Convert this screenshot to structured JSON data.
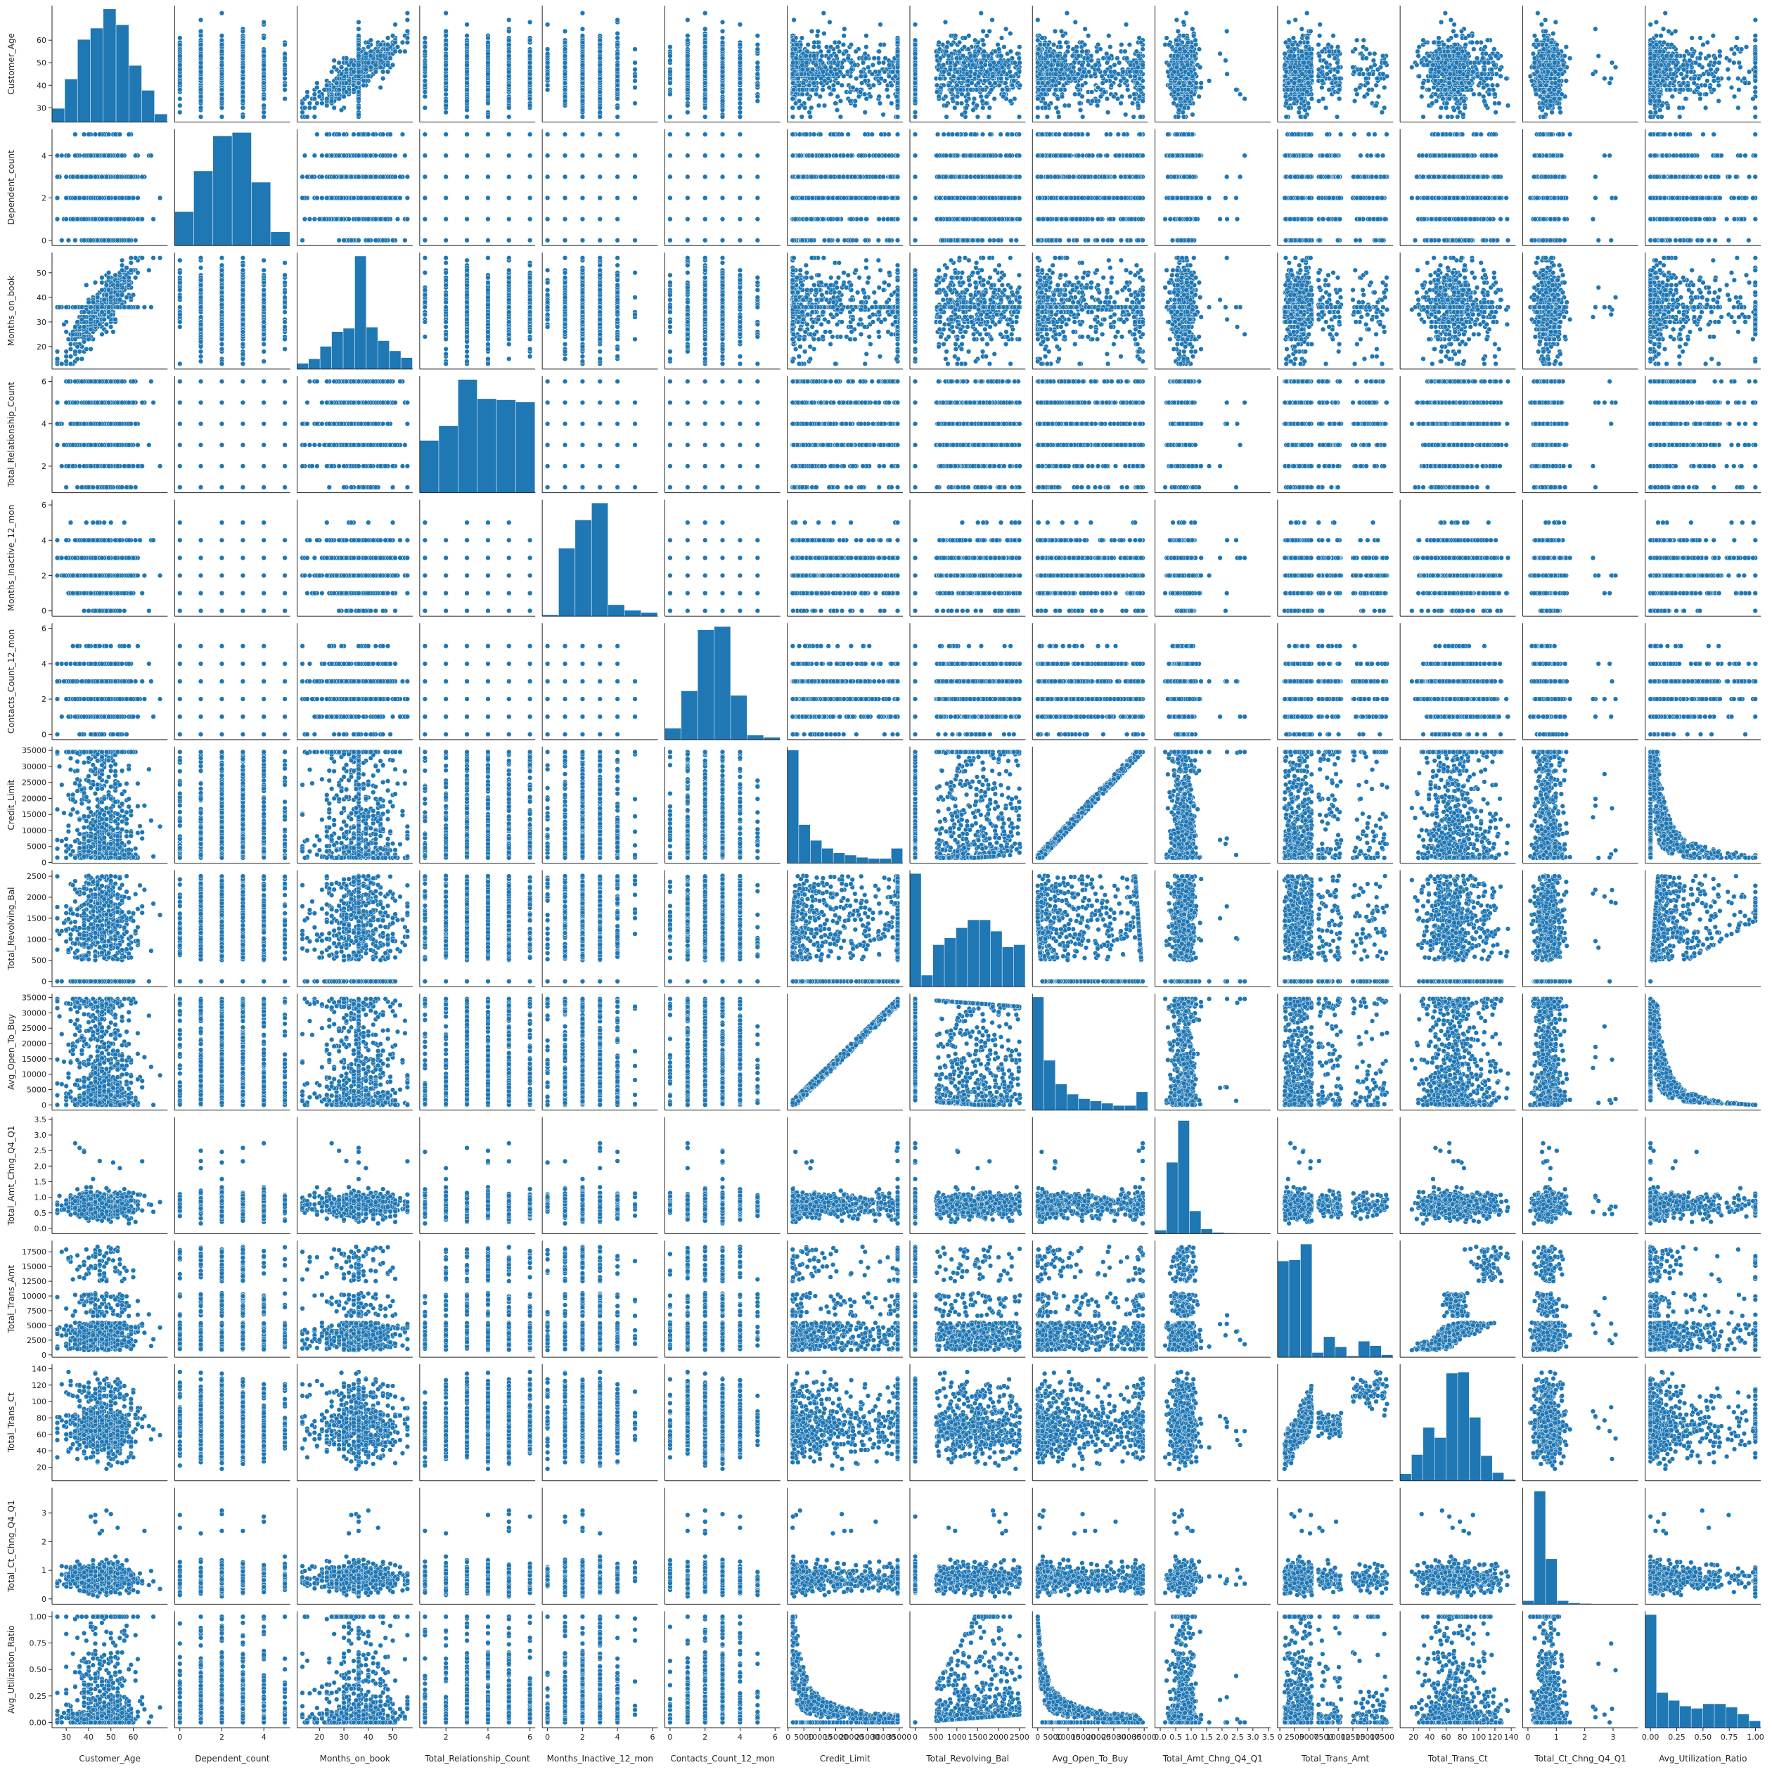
{
  "chart_data": {
    "type": "scatter",
    "layout": "pairplot",
    "point_color": "#1f77b4",
    "variables": [
      {
        "name": "Customer_Age",
        "range": [
          26,
          73
        ],
        "ticks": [
          {
            "v": 30,
            "label": "30"
          },
          {
            "v": 40,
            "label": "40"
          },
          {
            "v": 50,
            "label": "50"
          },
          {
            "v": 60,
            "label": "60"
          }
        ],
        "kind": "cont",
        "hist": [
          0.12,
          0.38,
          0.73,
          0.83,
          1.0,
          0.86,
          0.5,
          0.28,
          0.07
        ]
      },
      {
        "name": "Dependent_count",
        "range": [
          0,
          5
        ],
        "ticks": [
          {
            "v": 0,
            "label": "0"
          },
          {
            "v": 2,
            "label": "2"
          },
          {
            "v": 4,
            "label": "4"
          }
        ],
        "kind": "disc",
        "hist": [
          0.3,
          0.66,
          0.97,
          1.0,
          0.56,
          0.12
        ]
      },
      {
        "name": "Months_on_book",
        "range": [
          13,
          56
        ],
        "ticks": [
          {
            "v": 20,
            "label": "20"
          },
          {
            "v": 30,
            "label": "30"
          },
          {
            "v": 40,
            "label": "40"
          },
          {
            "v": 50,
            "label": "50"
          }
        ],
        "kind": "cont",
        "hist": [
          0.05,
          0.09,
          0.2,
          0.33,
          0.36,
          1.0,
          0.37,
          0.25,
          0.16,
          0.1
        ]
      },
      {
        "name": "Total_Relationship_Count",
        "range": [
          1,
          6
        ],
        "ticks": [
          {
            "v": 2,
            "label": "2"
          },
          {
            "v": 4,
            "label": "4"
          },
          {
            "v": 6,
            "label": "6"
          }
        ],
        "kind": "disc",
        "hist": [
          0.46,
          0.59,
          1.0,
          0.83,
          0.82,
          0.8
        ]
      },
      {
        "name": "Months_Inactive_12_mon",
        "range": [
          0,
          6
        ],
        "ticks": [
          {
            "v": 0,
            "label": "0"
          },
          {
            "v": 2,
            "label": "2"
          },
          {
            "v": 4,
            "label": "4"
          },
          {
            "v": 6,
            "label": "6"
          }
        ],
        "kind": "disc",
        "hist": [
          0.01,
          0.6,
          0.85,
          1.0,
          0.1,
          0.05,
          0.03
        ]
      },
      {
        "name": "Contacts_Count_12_mon",
        "range": [
          0,
          6
        ],
        "ticks": [
          {
            "v": 0,
            "label": "0"
          },
          {
            "v": 2,
            "label": "2"
          },
          {
            "v": 4,
            "label": "4"
          },
          {
            "v": 6,
            "label": "6"
          }
        ],
        "kind": "disc",
        "hist": [
          0.1,
          0.43,
          0.97,
          1.0,
          0.39,
          0.04,
          0.02
        ]
      },
      {
        "name": "Credit_Limit",
        "range": [
          1438,
          34516
        ],
        "ticks": [
          {
            "v": 0,
            "label": "0"
          },
          {
            "v": 5000,
            "label": "5000"
          },
          {
            "v": 10000,
            "label": "10000"
          },
          {
            "v": 15000,
            "label": "15000"
          },
          {
            "v": 20000,
            "label": "20000"
          },
          {
            "v": 25000,
            "label": "25000"
          },
          {
            "v": 30000,
            "label": "30000"
          },
          {
            "v": 35000,
            "label": "35000"
          }
        ],
        "kind": "cont",
        "hist": [
          1.0,
          0.34,
          0.2,
          0.13,
          0.09,
          0.07,
          0.05,
          0.04,
          0.04,
          0.13
        ]
      },
      {
        "name": "Total_Revolving_Bal",
        "range": [
          0,
          2517
        ],
        "ticks": [
          {
            "v": 0,
            "label": "0"
          },
          {
            "v": 500,
            "label": "500"
          },
          {
            "v": 1000,
            "label": "1000"
          },
          {
            "v": 1500,
            "label": "1500"
          },
          {
            "v": 2000,
            "label": "2000"
          },
          {
            "v": 2500,
            "label": "2500"
          }
        ],
        "kind": "cont",
        "hist": [
          1.0,
          0.1,
          0.37,
          0.43,
          0.52,
          0.59,
          0.59,
          0.49,
          0.35,
          0.37
        ]
      },
      {
        "name": "Avg_Open_To_Buy",
        "range": [
          3,
          34516
        ],
        "ticks": [
          {
            "v": 0,
            "label": "0"
          },
          {
            "v": 5000,
            "label": "5000"
          },
          {
            "v": 10000,
            "label": "10000"
          },
          {
            "v": 15000,
            "label": "15000"
          },
          {
            "v": 20000,
            "label": "20000"
          },
          {
            "v": 25000,
            "label": "25000"
          },
          {
            "v": 30000,
            "label": "30000"
          },
          {
            "v": 35000,
            "label": "35000"
          }
        ],
        "kind": "cont",
        "hist": [
          1.0,
          0.44,
          0.23,
          0.14,
          0.1,
          0.08,
          0.06,
          0.04,
          0.04,
          0.16
        ]
      },
      {
        "name": "Total_Amt_Chng_Q4_Q1",
        "range": [
          0,
          3.4
        ],
        "ticks": [
          {
            "v": 0,
            "label": "0.0"
          },
          {
            "v": 0.5,
            "label": "0.5"
          },
          {
            "v": 1,
            "label": "1.0"
          },
          {
            "v": 1.5,
            "label": "1.5"
          },
          {
            "v": 2,
            "label": "2.0"
          },
          {
            "v": 2.5,
            "label": "2.5"
          },
          {
            "v": 3,
            "label": "3.0"
          },
          {
            "v": 3.5,
            "label": "3.5"
          }
        ],
        "kind": "cont",
        "hist": [
          0.03,
          0.63,
          1.0,
          0.2,
          0.04,
          0.01,
          0.005,
          0.003,
          0.002,
          0.001
        ]
      },
      {
        "name": "Total_Trans_Amt",
        "range": [
          510,
          18484
        ],
        "ticks": [
          {
            "v": 0,
            "label": "0"
          },
          {
            "v": 2500,
            "label": "2500"
          },
          {
            "v": 5000,
            "label": "5000"
          },
          {
            "v": 7500,
            "label": "7500"
          },
          {
            "v": 10000,
            "label": "10000"
          },
          {
            "v": 12500,
            "label": "12500"
          },
          {
            "v": 15000,
            "label": "15000"
          },
          {
            "v": 17500,
            "label": "17500"
          }
        ],
        "kind": "cont",
        "hist": [
          0.85,
          0.86,
          1.0,
          0.04,
          0.18,
          0.09,
          0.01,
          0.14,
          0.1,
          0.02
        ]
      },
      {
        "name": "Total_Trans_Ct",
        "range": [
          10,
          139
        ],
        "ticks": [
          {
            "v": 20,
            "label": "20"
          },
          {
            "v": 40,
            "label": "40"
          },
          {
            "v": 60,
            "label": "60"
          },
          {
            "v": 80,
            "label": "80"
          },
          {
            "v": 100,
            "label": "100"
          },
          {
            "v": 120,
            "label": "120"
          },
          {
            "v": 140,
            "label": "140"
          }
        ],
        "kind": "cont",
        "hist": [
          0.06,
          0.23,
          0.47,
          0.38,
          0.95,
          0.96,
          0.56,
          0.22,
          0.07,
          0.01
        ]
      },
      {
        "name": "Total_Ct_Chng_Q4_Q1",
        "range": [
          0,
          3.7
        ],
        "ticks": [
          {
            "v": 0,
            "label": "0"
          },
          {
            "v": 1,
            "label": "1"
          },
          {
            "v": 2,
            "label": "2"
          },
          {
            "v": 3,
            "label": "3"
          }
        ],
        "kind": "cont",
        "hist": [
          0.03,
          1.0,
          0.4,
          0.03,
          0.01,
          0.005,
          0.002,
          0.001,
          0.001,
          0.001
        ]
      },
      {
        "name": "Avg_Utilization_Ratio",
        "range": [
          0,
          1
        ],
        "ticks": [
          {
            "v": 0,
            "label": "0.00"
          },
          {
            "v": 0.25,
            "label": "0.25"
          },
          {
            "v": 0.5,
            "label": "0.50"
          },
          {
            "v": 0.75,
            "label": "0.75"
          },
          {
            "v": 1,
            "label": "1.00"
          }
        ],
        "kind": "cont",
        "hist": [
          1.0,
          0.31,
          0.24,
          0.19,
          0.17,
          0.21,
          0.21,
          0.18,
          0.12,
          0.06
        ]
      }
    ],
    "grid": false,
    "legend": "none"
  }
}
